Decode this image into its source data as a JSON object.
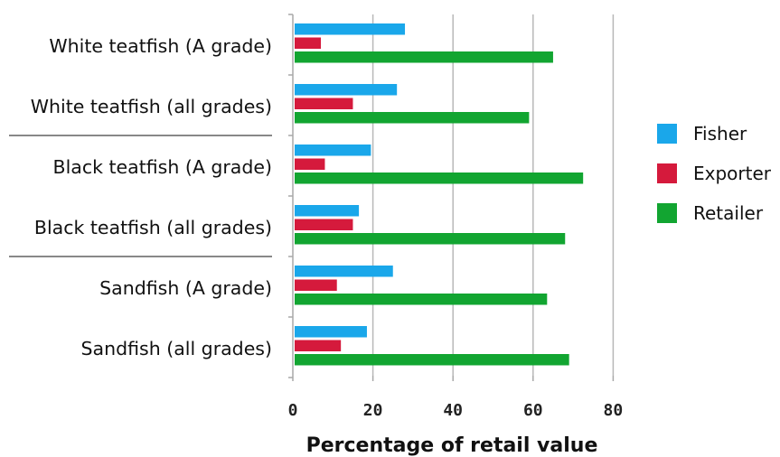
{
  "chart_data": {
    "type": "bar",
    "orientation": "horizontal",
    "categories": [
      "White teatfish (A grade)",
      "White teatfish (all grades)",
      "Black teatfish (A grade)",
      "Black teatfish (all grades)",
      "Sandfish (A grade)",
      "Sandfish (all grades)"
    ],
    "series": [
      {
        "name": "Fisher",
        "color": "#1aa7ea",
        "values": [
          28,
          26,
          19.5,
          16.5,
          25,
          18.5
        ]
      },
      {
        "name": "Exporter",
        "color": "#d51a3c",
        "values": [
          7,
          15,
          8,
          15,
          11,
          12
        ]
      },
      {
        "name": "Retailer",
        "color": "#12a531",
        "values": [
          65,
          59,
          72.5,
          68,
          63.5,
          69
        ]
      }
    ],
    "xlabel": "Percentage of retail value",
    "xlim": [
      0,
      80
    ],
    "xticks": [
      "0",
      "20",
      "40",
      "60",
      "80"
    ],
    "grid": "vertical",
    "legend": "right",
    "group_separators_after": [
      1,
      3
    ]
  }
}
